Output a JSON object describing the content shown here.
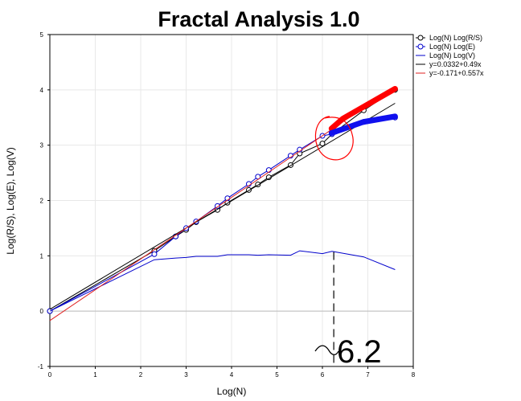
{
  "colors": {
    "black": "#000000",
    "blue": "#0000cc",
    "red": "#ff0000",
    "red_line": "#e02020",
    "grid": "#e8e8e8",
    "zero_line": "#bbbbbb",
    "annotation_blue": "#1010ee"
  },
  "chart_data": {
    "type": "line",
    "title": "Fractal Analysis 1.0",
    "xlabel": "Log(N)",
    "ylabel": "Log(R/S), Log(E), Log(V)",
    "xlim": [
      0,
      8
    ],
    "ylim": [
      -1,
      5
    ],
    "xticks": [
      "0",
      "1",
      "2",
      "3",
      "4",
      "5",
      "6",
      "7",
      "8"
    ],
    "yticks": [
      "-1",
      "0",
      "1",
      "2",
      "3",
      "4",
      "5"
    ],
    "grid": true,
    "legend_position": "top-right",
    "series": [
      {
        "name": "Log(N) Log(R/S)",
        "color": "#000000",
        "marker": "circle",
        "x": [
          0,
          2.3,
          2.77,
          3.0,
          3.22,
          3.69,
          3.91,
          4.38,
          4.58,
          4.82,
          5.3,
          5.5,
          6.0,
          6.21,
          6.91,
          7.6
        ],
        "y": [
          0,
          1.09,
          1.35,
          1.47,
          1.61,
          1.83,
          1.96,
          2.19,
          2.29,
          2.42,
          2.64,
          2.85,
          3.03,
          3.2,
          3.63,
          4.0
        ]
      },
      {
        "name": "Log(N) Log(E)",
        "color": "#0000cc",
        "marker": "circle",
        "x": [
          0,
          2.3,
          2.77,
          3.0,
          3.22,
          3.69,
          3.91,
          4.38,
          4.58,
          4.82,
          5.3,
          5.5,
          6.0,
          6.21,
          6.91,
          7.6
        ],
        "y": [
          0,
          1.03,
          1.35,
          1.5,
          1.62,
          1.9,
          2.04,
          2.3,
          2.43,
          2.55,
          2.81,
          2.92,
          3.17,
          3.2,
          3.42,
          3.5
        ]
      },
      {
        "name": "Log(N) Log(V)",
        "color": "#0000cc",
        "marker": "none",
        "x": [
          0,
          2.3,
          2.77,
          3.0,
          3.22,
          3.69,
          3.91,
          4.38,
          4.58,
          4.82,
          5.3,
          5.5,
          6.0,
          6.21,
          6.91,
          7.6
        ],
        "y": [
          0,
          0.93,
          0.96,
          0.97,
          0.99,
          0.99,
          1.02,
          1.02,
          1.01,
          1.02,
          1.01,
          1.09,
          1.04,
          1.08,
          0.98,
          0.75
        ]
      },
      {
        "name": "y=0.0332+0.49x",
        "color": "#000000",
        "marker": "none",
        "fit": {
          "intercept": 0.0332,
          "slope": 0.49
        },
        "x": [
          0,
          7.6
        ]
      },
      {
        "name": "y=-0.171+0.557x",
        "color": "#e02020",
        "marker": "none",
        "fit": {
          "intercept": -0.171,
          "slope": 0.557
        },
        "x": [
          0,
          7.6
        ]
      }
    ],
    "annotations": {
      "marker_text": "6.2",
      "marker_x": 6.25,
      "marker_from_y": -1,
      "marker_to_y": 1.07,
      "red_highlight": [
        [
          6.2,
          3.3
        ],
        [
          6.45,
          3.48
        ],
        [
          7.6,
          4.02
        ]
      ],
      "blue_highlight": [
        [
          6.2,
          3.22
        ],
        [
          6.9,
          3.42
        ],
        [
          7.6,
          3.52
        ]
      ],
      "circle_center": [
        6.3,
        3.2
      ]
    }
  }
}
